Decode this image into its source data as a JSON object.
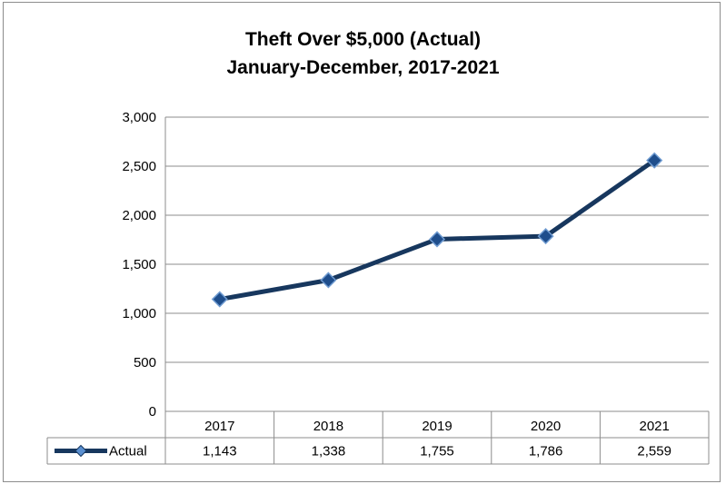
{
  "chart_data": {
    "type": "line",
    "title": "Theft Over $5,000 (Actual)",
    "subtitle": "January-December, 2017-2021",
    "categories": [
      "2017",
      "2018",
      "2019",
      "2020",
      "2021"
    ],
    "series": [
      {
        "name": "Actual",
        "values": [
          1143,
          1338,
          1755,
          1786,
          2559
        ],
        "value_labels": [
          "1,143",
          "1,338",
          "1,755",
          "1,786",
          "2,559"
        ],
        "color": "#17375e",
        "marker_color": "#1f4e8c",
        "marker": "diamond"
      }
    ],
    "ylim": [
      0,
      3000
    ],
    "yticks": [
      0,
      500,
      1000,
      1500,
      2000,
      2500,
      3000
    ],
    "ytick_labels": [
      "0",
      "500",
      "1,000",
      "1,500",
      "2,000",
      "2,500",
      "3,000"
    ],
    "grid": true,
    "legend": "data-table"
  }
}
